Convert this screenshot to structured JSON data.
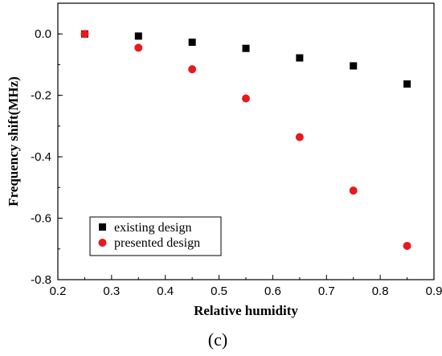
{
  "chart_data": {
    "type": "scatter",
    "xlabel": "Relative humidity",
    "ylabel": "Frequency shift(MHz)",
    "xlim": [
      0.2,
      0.9
    ],
    "ylim": [
      -0.8,
      0.1
    ],
    "xticks": [
      "0.2",
      "0.3",
      "0.4",
      "0.5",
      "0.6",
      "0.7",
      "0.8",
      "0.9"
    ],
    "yticks": [
      "0.0",
      "-0.2",
      "-0.4",
      "-0.6",
      "-0.8"
    ],
    "grid": false,
    "legend_position": "bottom-left",
    "panel_label": "(c)",
    "series": [
      {
        "name": "existing design",
        "marker": "square",
        "color": "#000000",
        "x": [
          0.25,
          0.35,
          0.45,
          0.55,
          0.65,
          0.75,
          0.85
        ],
        "y": [
          0.0,
          -0.007,
          -0.027,
          -0.047,
          -0.078,
          -0.104,
          -0.163
        ]
      },
      {
        "name": "presented design",
        "marker": "circle",
        "color": "#e8191d",
        "x": [
          0.25,
          0.35,
          0.45,
          0.55,
          0.65,
          0.75,
          0.85
        ],
        "y": [
          0.0,
          -0.045,
          -0.115,
          -0.21,
          -0.336,
          -0.51,
          -0.69
        ]
      }
    ]
  }
}
